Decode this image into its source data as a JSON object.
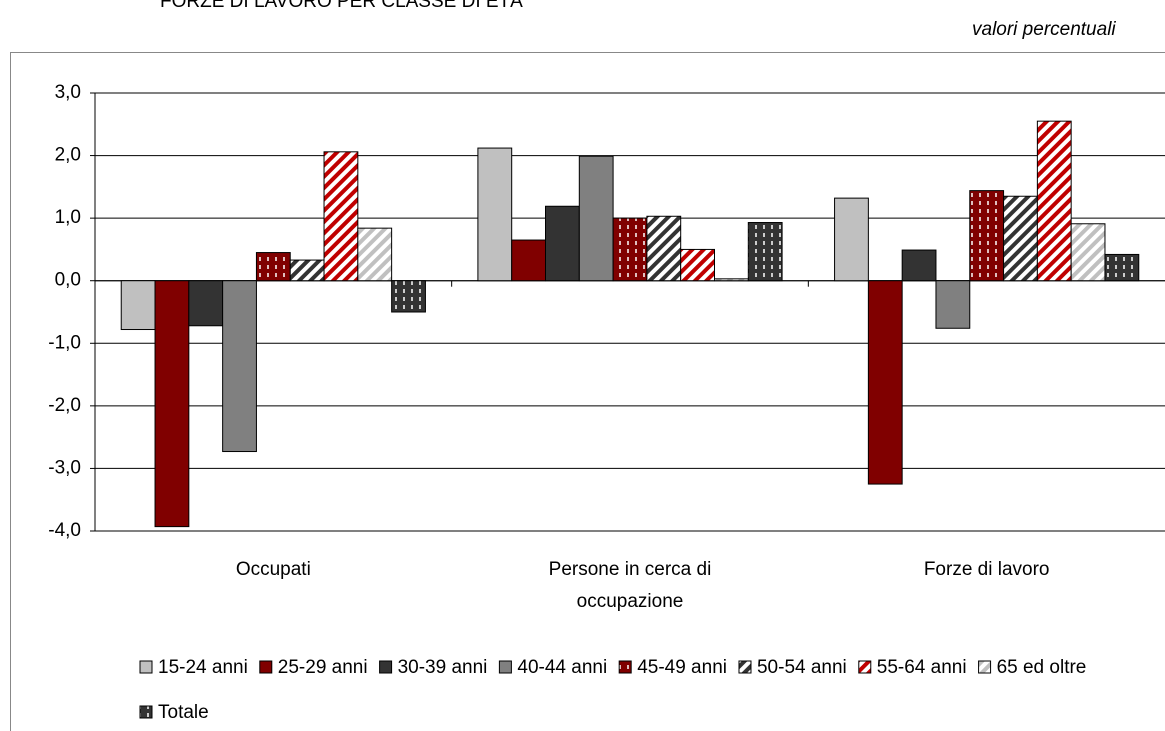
{
  "chart_data": {
    "type": "bar",
    "title": "FORZE DI LAVORO PER CLASSE DI ETÀ",
    "subtitle": "valori percentuali",
    "categories": [
      "Occupati",
      "Persone in cerca di occupazione",
      "Forze di lavoro"
    ],
    "ylim": [
      -4,
      3
    ],
    "yticks": [
      {
        "value": -4,
        "label": "-4,0"
      },
      {
        "value": -3,
        "label": "-3,0"
      },
      {
        "value": -2,
        "label": "-2,0"
      },
      {
        "value": -1,
        "label": "-1,0"
      },
      {
        "value": 0,
        "label": "0,0"
      },
      {
        "value": 1,
        "label": "1,0"
      },
      {
        "value": 2,
        "label": "2,0"
      },
      {
        "value": 3,
        "label": "3,0"
      }
    ],
    "grid": true,
    "legend": "bottom",
    "series": [
      {
        "name": "15-24 anni",
        "color": "#c0c0c0",
        "hatch": "none",
        "values": [
          -0.78,
          2.12,
          1.32
        ]
      },
      {
        "name": "25-29 anni",
        "color": "#800000",
        "hatch": "none",
        "values": [
          -3.93,
          0.65,
          -3.25
        ]
      },
      {
        "name": "30-39 anni",
        "color": "#333333",
        "hatch": "none",
        "values": [
          -0.72,
          1.19,
          0.49
        ]
      },
      {
        "name": "40-44 anni",
        "color": "#808080",
        "hatch": "none",
        "values": [
          -2.73,
          1.99,
          -0.76
        ]
      },
      {
        "name": "45-49 anni",
        "color": "#800000",
        "hatch": "dash",
        "values": [
          0.45,
          1.0,
          1.44
        ]
      },
      {
        "name": "50-54 anni",
        "color": "#333333",
        "hatch": "diagonal",
        "values": [
          0.33,
          1.03,
          1.35
        ]
      },
      {
        "name": "55-64 anni",
        "color": "#c00000",
        "hatch": "diagonal",
        "values": [
          2.06,
          0.5,
          2.55
        ]
      },
      {
        "name": "65 ed oltre",
        "color": "#c0c0c0",
        "hatch": "diagonal",
        "values": [
          0.84,
          0.03,
          0.91
        ]
      },
      {
        "name": "Totale",
        "color": "#333333",
        "hatch": "dash",
        "values": [
          -0.5,
          0.93,
          0.42
        ]
      }
    ]
  }
}
